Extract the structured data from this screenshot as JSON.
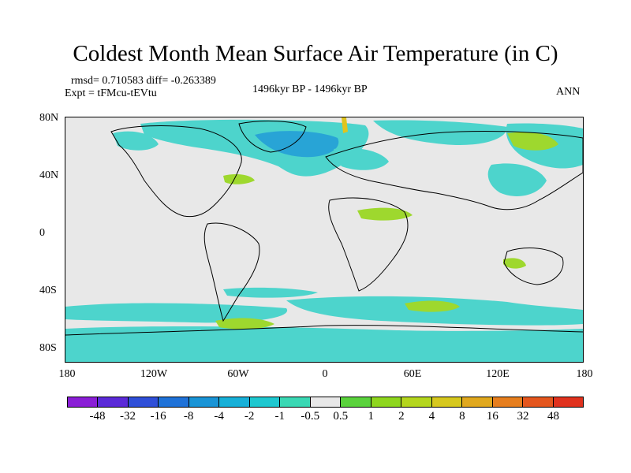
{
  "title": "Coldest Month Mean Surface Air Temperature (in C)",
  "stats": "rmsd= 0.710583  diff= -0.263389",
  "experiment": "Expt = tFMcu-tEVtu",
  "period": "1496kyr BP - 1496kyr BP",
  "season": "ANN",
  "x_ticks": [
    "180",
    "120W",
    "60W",
    "0",
    "60E",
    "120E",
    "180"
  ],
  "y_ticks": [
    "80N",
    "40N",
    "0",
    "40S",
    "80S"
  ],
  "colorbar": {
    "labels": [
      "-48",
      "-32",
      "-16",
      "-8",
      "-4",
      "-2",
      "-1",
      "-0.5",
      "0.5",
      "1",
      "2",
      "4",
      "8",
      "16",
      "32",
      "48"
    ],
    "colors": [
      "#8a1ed6",
      "#5b2ad8",
      "#2f4fd8",
      "#1f72d8",
      "#1994d6",
      "#17b0d8",
      "#1ec8d0",
      "#3ad8b4",
      "#e8e8e8",
      "#5ad23c",
      "#8ed61e",
      "#b4d61e",
      "#d6c81e",
      "#e0a81e",
      "#e67e1e",
      "#e4561e",
      "#e0321e"
    ]
  },
  "map": {
    "background": "#e8e8e8",
    "cyan": "#4dd4cc",
    "blue": "#28a4d6",
    "green": "#9ed82e",
    "yellow": "#e0c41e"
  }
}
